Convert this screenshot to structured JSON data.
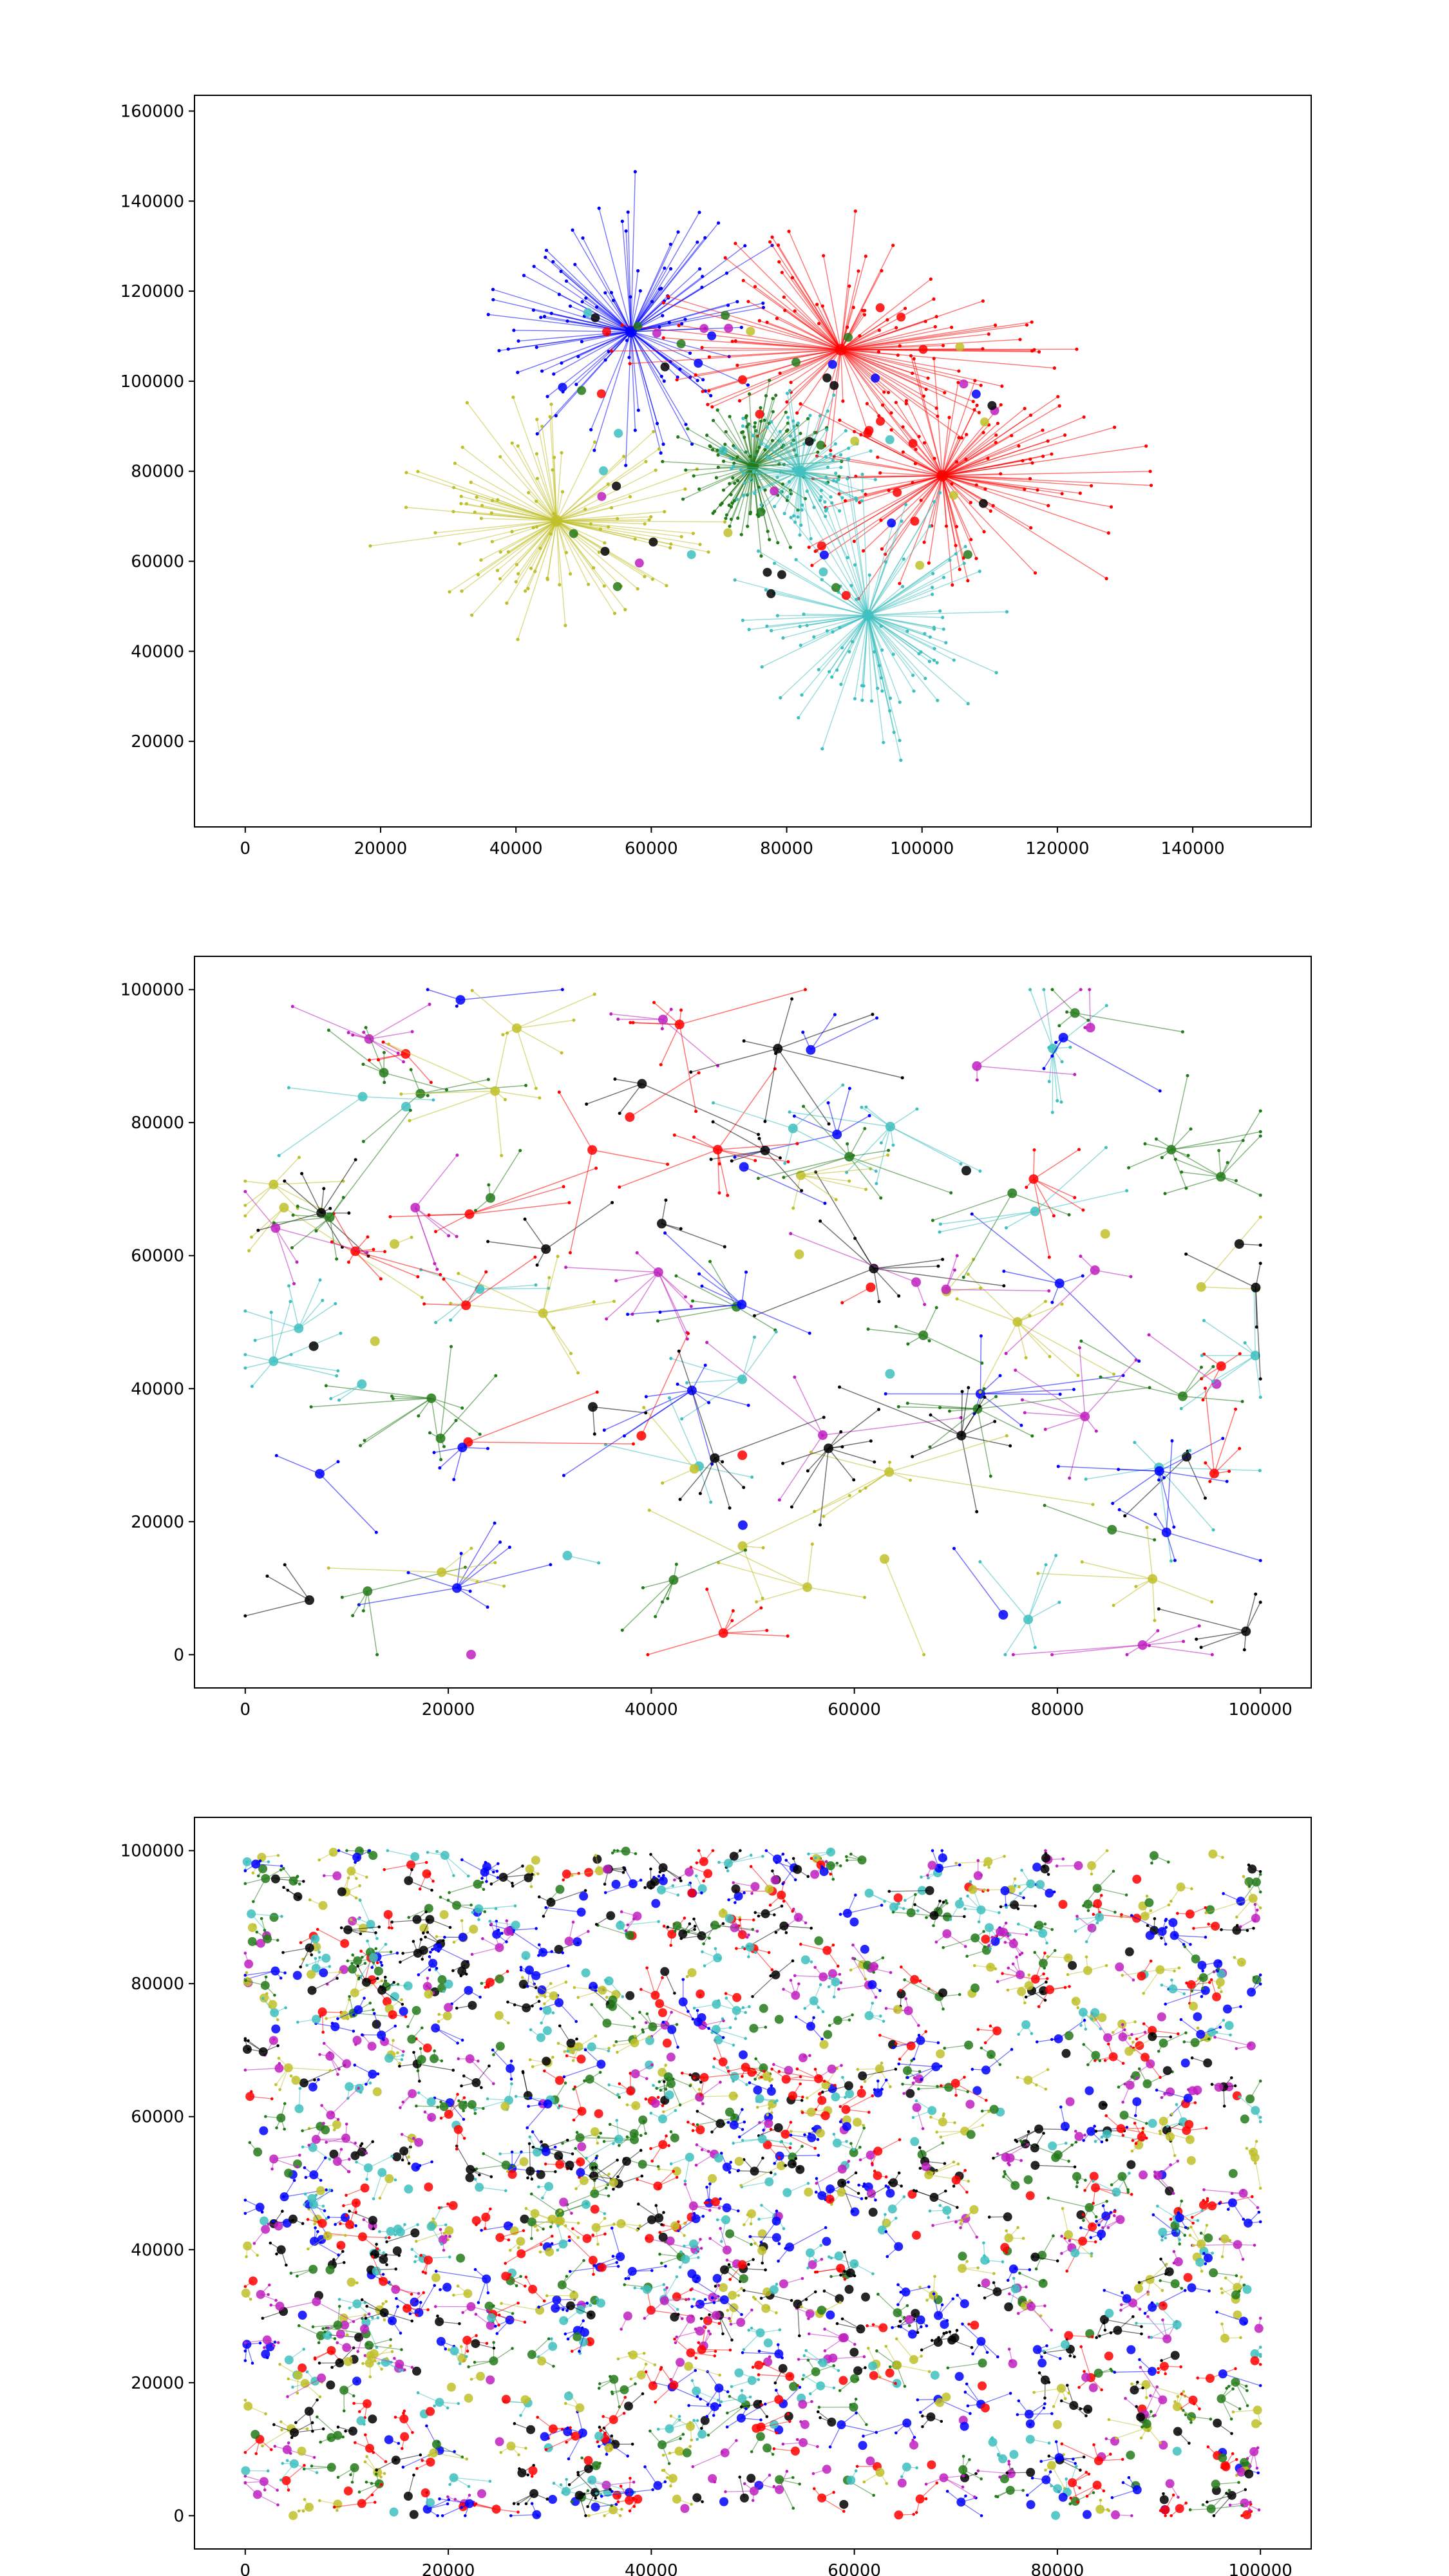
{
  "colors": {
    "b": "#0000ff",
    "r": "#ff0000",
    "g": "#237a1a",
    "c": "#3fbfbf",
    "y": "#bfbf2a",
    "m": "#bf20bf",
    "k": "#000000"
  },
  "chart_data": [
    {
      "type": "scatter",
      "title": "",
      "xlabel": "",
      "ylabel": "",
      "xlim": [
        -7500,
        157500
      ],
      "ylim": [
        1000,
        163500
      ],
      "xticks": [
        0,
        20000,
        40000,
        60000,
        80000,
        100000,
        120000,
        140000
      ],
      "yticks": [
        20000,
        40000,
        60000,
        80000,
        100000,
        120000,
        140000,
        160000
      ],
      "xtick_labels": [
        "0",
        "20000",
        "40000",
        "60000",
        "80000",
        "100000",
        "120000",
        "140000"
      ],
      "ytick_labels": [
        "20000",
        "40000",
        "60000",
        "80000",
        "100000",
        "120000",
        "140000",
        "160000"
      ],
      "grid": false,
      "legend": "none",
      "clusters": [
        {
          "color": "b",
          "center": [
            57000,
            111000
          ],
          "members": 110,
          "spread": [
            18000,
            16000
          ],
          "seed": 11
        },
        {
          "color": "r",
          "center": [
            88000,
            107000
          ],
          "members": 110,
          "spread": [
            26000,
            14000
          ],
          "seed": 12
        },
        {
          "color": "r",
          "center": [
            103000,
            79000
          ],
          "members": 110,
          "spread": [
            22000,
            13000
          ],
          "seed": 13
        },
        {
          "color": "y",
          "center": [
            46000,
            69000
          ],
          "members": 110,
          "spread": [
            21000,
            13000
          ],
          "seed": 14
        },
        {
          "color": "g",
          "center": [
            75000,
            81000
          ],
          "members": 120,
          "spread": [
            9000,
            9000
          ],
          "seed": 15
        },
        {
          "color": "c",
          "center": [
            82000,
            80000
          ],
          "members": 90,
          "spread": [
            9000,
            9000
          ],
          "seed": 16
        },
        {
          "color": "c",
          "center": [
            92000,
            48000
          ],
          "members": 110,
          "spread": [
            16000,
            16000
          ],
          "seed": 17
        }
      ],
      "extra_points": {
        "count": 70,
        "x_range": [
          44000,
          112000
        ],
        "y_range": [
          50000,
          118000
        ],
        "seed": 18
      }
    },
    {
      "type": "scatter",
      "title": "",
      "xlabel": "",
      "ylabel": "",
      "xlim": [
        -5000,
        105000
      ],
      "ylim": [
        -5000,
        105000
      ],
      "xticks": [
        0,
        20000,
        40000,
        60000,
        80000,
        100000
      ],
      "yticks": [
        0,
        20000,
        40000,
        60000,
        80000,
        100000
      ],
      "xtick_labels": [
        "0",
        "20000",
        "40000",
        "60000",
        "80000",
        "100000"
      ],
      "ytick_labels": [
        "0",
        "20000",
        "40000",
        "60000",
        "80000",
        "100000"
      ],
      "grid": false,
      "legend": "none",
      "cluster_count": 120,
      "members_per_cluster": [
        0,
        10
      ],
      "spread": 5500,
      "domain": [
        0,
        100000
      ],
      "seed": 21
    },
    {
      "type": "scatter",
      "title": "",
      "xlabel": "",
      "ylabel": "",
      "xlim": [
        -5000,
        105000
      ],
      "ylim": [
        -5000,
        105000
      ],
      "xticks": [
        0,
        20000,
        40000,
        60000,
        80000,
        100000
      ],
      "yticks": [
        0,
        20000,
        40000,
        60000,
        80000,
        100000
      ],
      "xtick_labels": [
        "0",
        "20000",
        "40000",
        "60000",
        "80000",
        "100000"
      ],
      "ytick_labels": [
        "0",
        "20000",
        "40000",
        "60000",
        "80000",
        "100000"
      ],
      "grid": false,
      "legend": "none",
      "cluster_count": 1400,
      "members_per_cluster": [
        0,
        4
      ],
      "spread": 1500,
      "domain": [
        0,
        100000
      ],
      "seed": 31
    }
  ]
}
